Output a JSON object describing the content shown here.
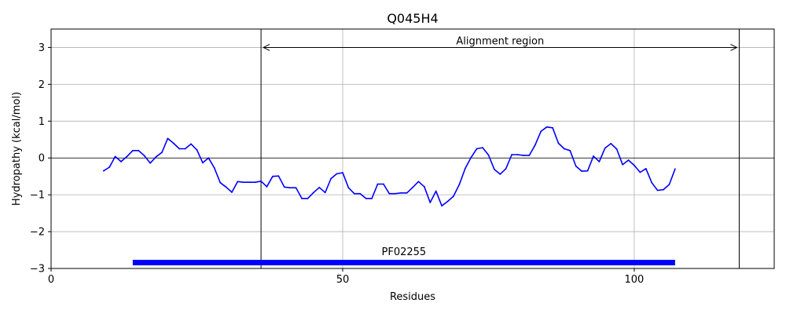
{
  "chart_data": {
    "type": "line",
    "title": "Q045H4",
    "xlabel": "Residues",
    "ylabel": "Hydropathy (kcal/mol)",
    "xlim": [
      0,
      124
    ],
    "ylim": [
      -3,
      3.5
    ],
    "xticks": [
      0,
      50,
      100
    ],
    "yticks": [
      -3,
      -2,
      -1,
      0,
      1,
      2,
      3
    ],
    "grid": true,
    "series": [
      {
        "color": "#0000ff",
        "x": [
          9,
          10,
          11,
          12,
          13,
          14,
          15,
          16,
          17,
          18,
          19,
          20,
          21,
          22,
          23,
          24,
          25,
          26,
          27,
          28,
          29,
          30,
          31,
          32,
          33,
          34,
          35,
          36,
          37,
          38,
          39,
          40,
          41,
          42,
          43,
          44,
          45,
          46,
          47,
          48,
          49,
          50,
          51,
          52,
          53,
          54,
          55,
          56,
          57,
          58,
          59,
          60,
          61,
          62,
          63,
          64,
          65,
          66,
          67,
          68,
          69,
          70,
          71,
          72,
          73,
          74,
          75,
          76,
          77,
          78,
          79,
          80,
          81,
          82,
          83,
          84,
          85,
          86,
          87,
          88,
          89,
          90,
          91,
          92,
          93,
          94,
          95,
          96,
          97,
          98,
          99,
          100,
          101,
          102,
          103,
          104,
          105,
          106,
          107
        ],
        "values": [
          -0.35,
          -0.25,
          0.04,
          -0.1,
          0.04,
          0.2,
          0.2,
          0.06,
          -0.14,
          0.03,
          0.15,
          0.53,
          0.4,
          0.25,
          0.25,
          0.38,
          0.22,
          -0.13,
          0.0,
          -0.27,
          -0.67,
          -0.79,
          -0.93,
          -0.64,
          -0.66,
          -0.66,
          -0.66,
          -0.63,
          -0.78,
          -0.5,
          -0.49,
          -0.79,
          -0.81,
          -0.81,
          -1.1,
          -1.1,
          -0.94,
          -0.8,
          -0.94,
          -0.56,
          -0.43,
          -0.4,
          -0.81,
          -0.97,
          -0.97,
          -1.1,
          -1.1,
          -0.71,
          -0.71,
          -0.97,
          -0.97,
          -0.95,
          -0.95,
          -0.8,
          -0.64,
          -0.78,
          -1.21,
          -0.9,
          -1.3,
          -1.18,
          -1.04,
          -0.72,
          -0.29,
          0.01,
          0.25,
          0.28,
          0.08,
          -0.31,
          -0.44,
          -0.29,
          0.09,
          0.09,
          0.07,
          0.07,
          0.35,
          0.72,
          0.84,
          0.82,
          0.4,
          0.25,
          0.2,
          -0.22,
          -0.36,
          -0.35,
          0.05,
          -0.1,
          0.27,
          0.39,
          0.24,
          -0.18,
          -0.06,
          -0.2,
          -0.39,
          -0.29,
          -0.67,
          -0.88,
          -0.86,
          -0.72,
          -0.3
        ]
      }
    ],
    "hlines": [
      0
    ],
    "vlines": [
      36,
      118
    ],
    "annotation": {
      "text": "Alignment region",
      "x_start": 36,
      "x_end": 118,
      "y": 3,
      "text_y": 3.17
    },
    "domain_bar": {
      "label": "PF02255",
      "x_start": 14,
      "x_end": 107,
      "y": -2.84,
      "color": "#0000ff",
      "label_y": -2.55
    }
  }
}
